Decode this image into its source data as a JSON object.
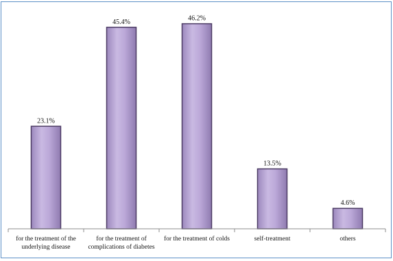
{
  "chart_data": {
    "type": "bar",
    "categories": [
      [
        "for the treatment of the",
        "underlying disease"
      ],
      [
        "for the treatment of",
        "complications of diabetes"
      ],
      [
        "for the treatment of colds"
      ],
      [
        "self-treatment"
      ],
      [
        "others"
      ]
    ],
    "values": [
      23.1,
      45.4,
      46.2,
      13.5,
      4.6
    ],
    "value_labels": [
      "23.1%",
      "45.4%",
      "46.2%",
      "13.5%",
      "4.6%"
    ],
    "unit": "%",
    "ylim": [
      0,
      50
    ],
    "grid": false,
    "legend": "none",
    "bar_color": "#b9a6d6",
    "bar_edge_color": "#4b3a63",
    "axis_color": "#8c8c8c",
    "frame_color": "#5b8fc6"
  }
}
